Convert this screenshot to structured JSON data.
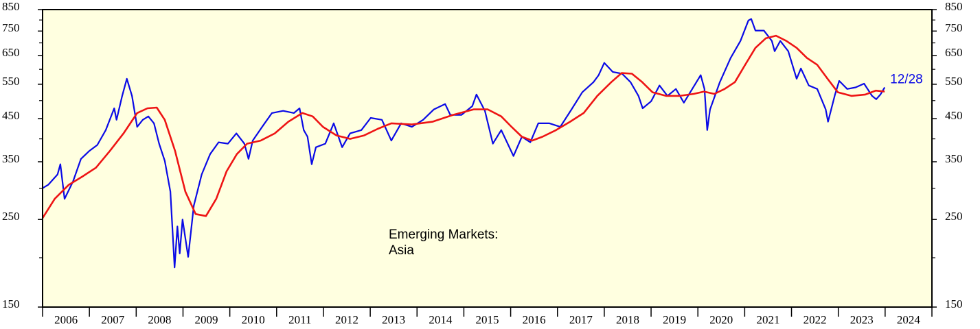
{
  "chart_data": {
    "type": "line",
    "ylog": true,
    "ylim": [
      150,
      850
    ],
    "yticks": [
      150,
      250,
      350,
      450,
      550,
      650,
      750,
      850
    ],
    "yticks_minor": [
      200,
      300,
      400,
      500,
      600,
      700,
      800
    ],
    "xlim": [
      2006,
      2025
    ],
    "xticks": [
      2006,
      2007,
      2008,
      2009,
      2010,
      2011,
      2012,
      2013,
      2014,
      2015,
      2016,
      2017,
      2018,
      2019,
      2020,
      2021,
      2022,
      2023,
      2024,
      2025
    ],
    "categories": [
      "2006",
      "2007",
      "2008",
      "2009",
      "2010",
      "2011",
      "2012",
      "2013",
      "2014",
      "2015",
      "2016",
      "2017",
      "2018",
      "2019",
      "2020",
      "2021",
      "2022",
      "2023",
      "2024"
    ],
    "annotation": [
      "Emerging Markets:",
      "Asia"
    ],
    "end_label": "12/28",
    "background": "#ffffe0",
    "series": [
      {
        "color": "#0a0ae6",
        "x": [
          2006.0,
          2006.12,
          2006.32,
          2006.38,
          2006.47,
          2006.65,
          2006.82,
          2007.0,
          2007.17,
          2007.35,
          2007.53,
          2007.58,
          2007.7,
          2007.8,
          2007.91,
          2008.02,
          2008.14,
          2008.26,
          2008.38,
          2008.49,
          2008.61,
          2008.73,
          2008.82,
          2008.88,
          2008.93,
          2008.99,
          2009.11,
          2009.23,
          2009.4,
          2009.58,
          2009.76,
          2009.96,
          2010.14,
          2010.31,
          2010.4,
          2010.49,
          2010.69,
          2010.9,
          2011.14,
          2011.37,
          2011.49,
          2011.58,
          2011.66,
          2011.75,
          2011.84,
          2012.04,
          2012.22,
          2012.4,
          2012.57,
          2012.81,
          2013.01,
          2013.25,
          2013.45,
          2013.66,
          2013.89,
          2014.13,
          2014.36,
          2014.6,
          2014.71,
          2014.95,
          2015.18,
          2015.27,
          2015.45,
          2015.62,
          2015.8,
          2016.06,
          2016.24,
          2016.42,
          2016.59,
          2016.83,
          2017.06,
          2017.3,
          2017.53,
          2017.77,
          2017.88,
          2018.0,
          2018.18,
          2018.38,
          2018.56,
          2018.73,
          2018.82,
          2019.0,
          2019.18,
          2019.35,
          2019.53,
          2019.7,
          2019.88,
          2020.06,
          2020.14,
          2020.2,
          2020.26,
          2020.47,
          2020.7,
          2020.91,
          2021.08,
          2021.14,
          2021.23,
          2021.41,
          2021.58,
          2021.64,
          2021.76,
          2021.93,
          2022.11,
          2022.2,
          2022.37,
          2022.55,
          2022.73,
          2022.78,
          2022.93,
          2023.02,
          2023.19,
          2023.37,
          2023.55,
          2023.72,
          2023.81,
          2023.9,
          2023.99
        ],
        "values": [
          300,
          306,
          325,
          345,
          282,
          312,
          356,
          373,
          386,
          421,
          478,
          447,
          514,
          568,
          514,
          429,
          447,
          456,
          438,
          389,
          352,
          294,
          189,
          240,
          205,
          250,
          201,
          271,
          325,
          366,
          392,
          389,
          413,
          389,
          356,
          396,
          429,
          465,
          471,
          465,
          478,
          421,
          405,
          345,
          381,
          389,
          438,
          381,
          413,
          421,
          452,
          447,
          396,
          438,
          429,
          447,
          475,
          490,
          460,
          460,
          484,
          518,
          471,
          389,
          421,
          362,
          405,
          392,
          438,
          438,
          429,
          475,
          525,
          557,
          580,
          623,
          591,
          585,
          557,
          514,
          478,
          498,
          546,
          514,
          535,
          494,
          535,
          580,
          535,
          421,
          475,
          557,
          641,
          708,
          798,
          805,
          752,
          752,
          708,
          667,
          708,
          667,
          568,
          603,
          546,
          535,
          475,
          442,
          518,
          561,
          535,
          540,
          552,
          514,
          504,
          518,
          540
        ]
      },
      {
        "color": "#ee1414",
        "x": [
          2006.0,
          2006.26,
          2006.56,
          2006.85,
          2007.14,
          2007.44,
          2007.73,
          2008.02,
          2008.24,
          2008.44,
          2008.61,
          2008.83,
          2009.05,
          2009.27,
          2009.49,
          2009.71,
          2009.93,
          2010.15,
          2010.37,
          2010.66,
          2010.96,
          2011.25,
          2011.55,
          2011.77,
          2011.99,
          2012.28,
          2012.57,
          2012.87,
          2013.16,
          2013.45,
          2013.89,
          2014.33,
          2014.77,
          2015.21,
          2015.51,
          2015.8,
          2016.02,
          2016.24,
          2016.46,
          2016.68,
          2016.97,
          2017.27,
          2017.56,
          2017.85,
          2018.15,
          2018.37,
          2018.59,
          2018.81,
          2019.03,
          2019.32,
          2019.61,
          2019.91,
          2020.13,
          2020.35,
          2020.57,
          2020.79,
          2021.01,
          2021.23,
          2021.45,
          2021.67,
          2021.89,
          2022.11,
          2022.33,
          2022.55,
          2022.77,
          2022.99,
          2023.28,
          2023.58,
          2023.8,
          2023.99
        ],
        "values": [
          252,
          282,
          306,
          321,
          338,
          373,
          413,
          465,
          478,
          480,
          447,
          373,
          294,
          258,
          255,
          282,
          331,
          366,
          389,
          396,
          413,
          442,
          465,
          456,
          429,
          408,
          400,
          408,
          424,
          438,
          435,
          442,
          460,
          475,
          475,
          456,
          429,
          405,
          396,
          405,
          421,
          442,
          465,
          514,
          557,
          587,
          585,
          557,
          525,
          514,
          514,
          520,
          527,
          520,
          535,
          557,
          616,
          680,
          719,
          730,
          708,
          680,
          641,
          616,
          568,
          525,
          514,
          518,
          530,
          527
        ]
      }
    ]
  }
}
